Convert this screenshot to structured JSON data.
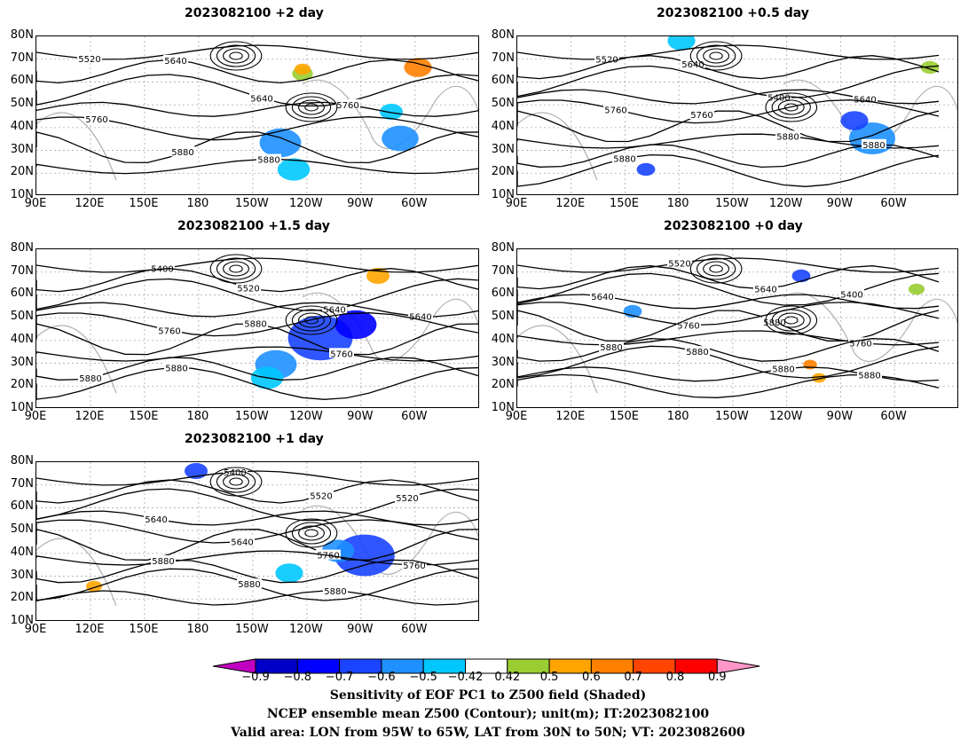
{
  "panels": [
    {
      "id": "p2",
      "title": "2023082100 +2 day",
      "contours": [
        "5520",
        "5640",
        "5640",
        "5760",
        "5760",
        "5880",
        "5880"
      ]
    },
    {
      "id": "p05",
      "title": "2023082100 +0.5 day",
      "contours": [
        "5520",
        "5640",
        "5400",
        "5640",
        "5760",
        "5760",
        "5880",
        "5880",
        "5880"
      ]
    },
    {
      "id": "p15",
      "title": "2023082100 +1.5 day",
      "contours": [
        "5400",
        "5520",
        "5640",
        "5640",
        "5760",
        "5880",
        "5760",
        "5880",
        "5880"
      ]
    },
    {
      "id": "p0",
      "title": "2023082100 +0 day",
      "contours": [
        "5520",
        "5640",
        "5400",
        "5640",
        "5760",
        "5880",
        "5760",
        "5880",
        "5880",
        "5880",
        "5880"
      ]
    },
    {
      "id": "p1",
      "title": "2023082100 +1 day",
      "contours": [
        "5400",
        "5520",
        "5520",
        "5640",
        "5640",
        "5760",
        "5760",
        "5880",
        "5880",
        "5880"
      ]
    }
  ],
  "axes": {
    "lat_labels": [
      "80N",
      "70N",
      "60N",
      "50N",
      "40N",
      "30N",
      "20N",
      "10N"
    ],
    "lon_labels": [
      "90E",
      "120E",
      "150E",
      "180",
      "150W",
      "120W",
      "90W",
      "60W"
    ]
  },
  "colorbar": {
    "labels": [
      "−0.9",
      "−0.8",
      "−0.7",
      "−0.6",
      "−0.5",
      "−0.42",
      "0.42",
      "0.5",
      "0.6",
      "0.7",
      "0.8",
      "0.9"
    ],
    "colors": [
      "#c000c0",
      "#0000c8",
      "#0000ff",
      "#1a44ff",
      "#1e90ff",
      "#00c8ff",
      "#ffffff",
      "#9acd32",
      "#ffa500",
      "#ff7f00",
      "#ff4500",
      "#ff0000",
      "#ff96c8"
    ]
  },
  "caption": {
    "line1": "Sensitivity of EOF PC1 to Z500 field (Shaded)",
    "line2": "NCEP ensemble mean Z500 (Contour); unit(m); IT:2023082100",
    "line3": "Valid area: LON from 95W to 65W, LAT from 30N to 50N; VT: 2023082600"
  }
}
